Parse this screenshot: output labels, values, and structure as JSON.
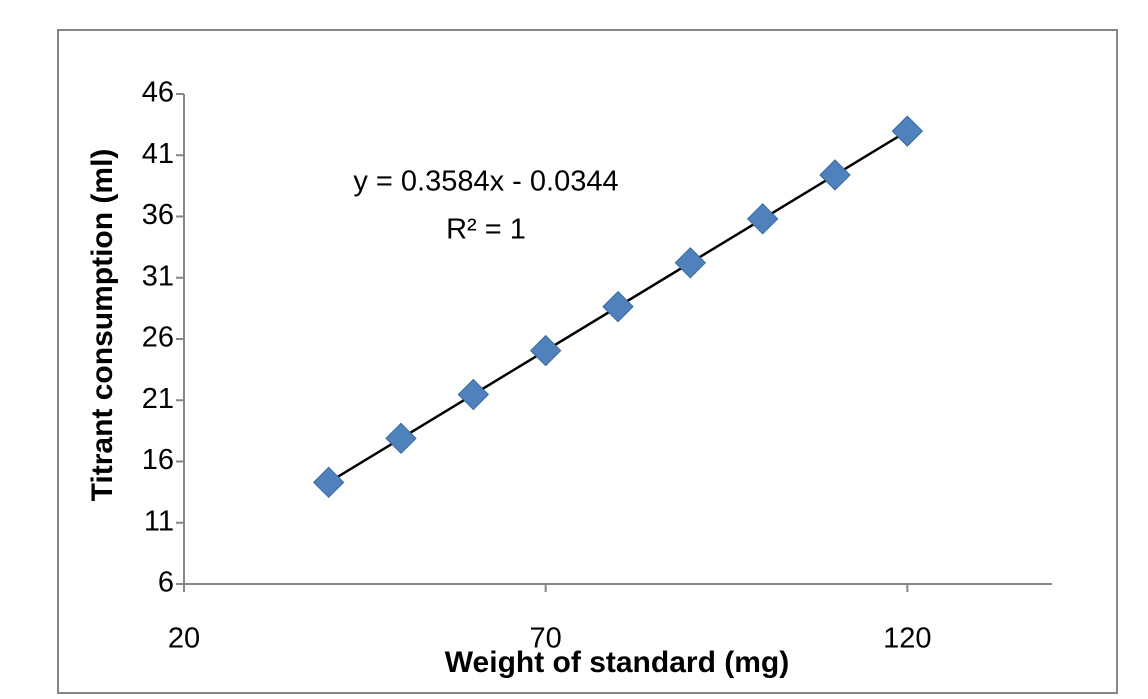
{
  "chart_data": {
    "type": "scatter",
    "x_label": "Weight of standard (mg)",
    "y_label": "Titrant consumption  (ml)",
    "x": [
      40,
      50,
      60,
      70,
      80,
      90,
      100,
      110,
      120
    ],
    "series": [
      {
        "name": "Titrant consumption",
        "color": "#4f81bd",
        "values": [
          14.3,
          17.89,
          21.47,
          25.05,
          28.64,
          32.22,
          35.81,
          39.39,
          42.97
        ]
      }
    ],
    "trendline": {
      "equation": "y = 0.3584x - 0.0344",
      "r_squared": "R² = 1",
      "slope": 0.3584,
      "intercept": -0.0344,
      "color": "#000000"
    },
    "xlim": [
      20,
      140
    ],
    "xticks": [
      20,
      70,
      120
    ],
    "ylim": [
      6,
      46
    ],
    "yticks": [
      6,
      11,
      16,
      21,
      26,
      31,
      36,
      41,
      46
    ]
  }
}
